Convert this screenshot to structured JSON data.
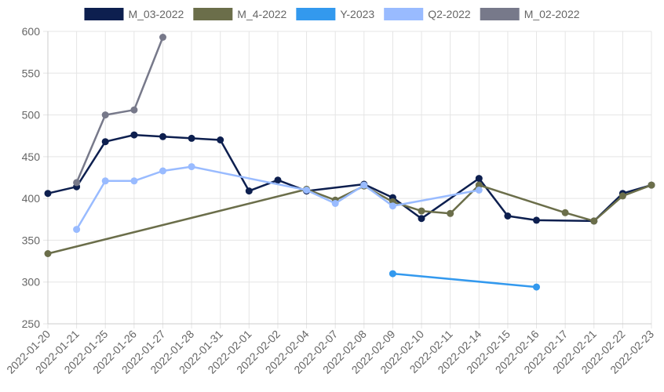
{
  "chart_data": {
    "type": "line",
    "title": "",
    "xlabel": "",
    "ylabel": "",
    "categories": [
      "2022-01-20",
      "2022-01-21",
      "2022-01-25",
      "2022-01-26",
      "2022-01-27",
      "2022-01-28",
      "2022-01-31",
      "2022-02-01",
      "2022-02-02",
      "2022-02-04",
      "2022-02-07",
      "2022-02-08",
      "2022-02-09",
      "2022-02-10",
      "2022-02-11",
      "2022-02-14",
      "2022-02-15",
      "2022-02-16",
      "2022-02-17",
      "2022-02-21",
      "2022-02-22",
      "2022-02-23"
    ],
    "ylim": [
      250,
      600
    ],
    "yticks": [
      250,
      300,
      350,
      400,
      450,
      500,
      550,
      600
    ],
    "grid": true,
    "legend_position": "top",
    "series": [
      {
        "name": "M_03-2022",
        "color": "#0d1f4f",
        "values": [
          406,
          414,
          468,
          476,
          474,
          472,
          470,
          409,
          422,
          409,
          null,
          417,
          401,
          376,
          null,
          424,
          379,
          374,
          null,
          373,
          406,
          416
        ]
      },
      {
        "name": "M_4-2022",
        "color": "#6b6e4a",
        "values": [
          334,
          null,
          null,
          null,
          null,
          null,
          null,
          null,
          null,
          411,
          398,
          415,
          396,
          385,
          382,
          416,
          null,
          null,
          383,
          373,
          403,
          416
        ]
      },
      {
        "name": "Y-2023",
        "color": "#3399ee",
        "values": [
          null,
          null,
          null,
          null,
          null,
          null,
          null,
          null,
          null,
          null,
          null,
          null,
          310,
          null,
          null,
          null,
          null,
          294,
          null,
          null,
          null,
          null
        ]
      },
      {
        "name": "Q2-2022",
        "color": "#99bbff",
        "values": [
          null,
          363,
          421,
          421,
          433,
          438,
          null,
          null,
          null,
          410,
          394,
          416,
          391,
          null,
          null,
          410,
          null,
          null,
          null,
          null,
          null,
          null
        ]
      },
      {
        "name": "M_02-2022",
        "color": "#77798a",
        "values": [
          null,
          419,
          500,
          506,
          593,
          null,
          null,
          null,
          null,
          null,
          null,
          null,
          null,
          null,
          null,
          null,
          null,
          null,
          null,
          null,
          null,
          null
        ]
      }
    ]
  }
}
